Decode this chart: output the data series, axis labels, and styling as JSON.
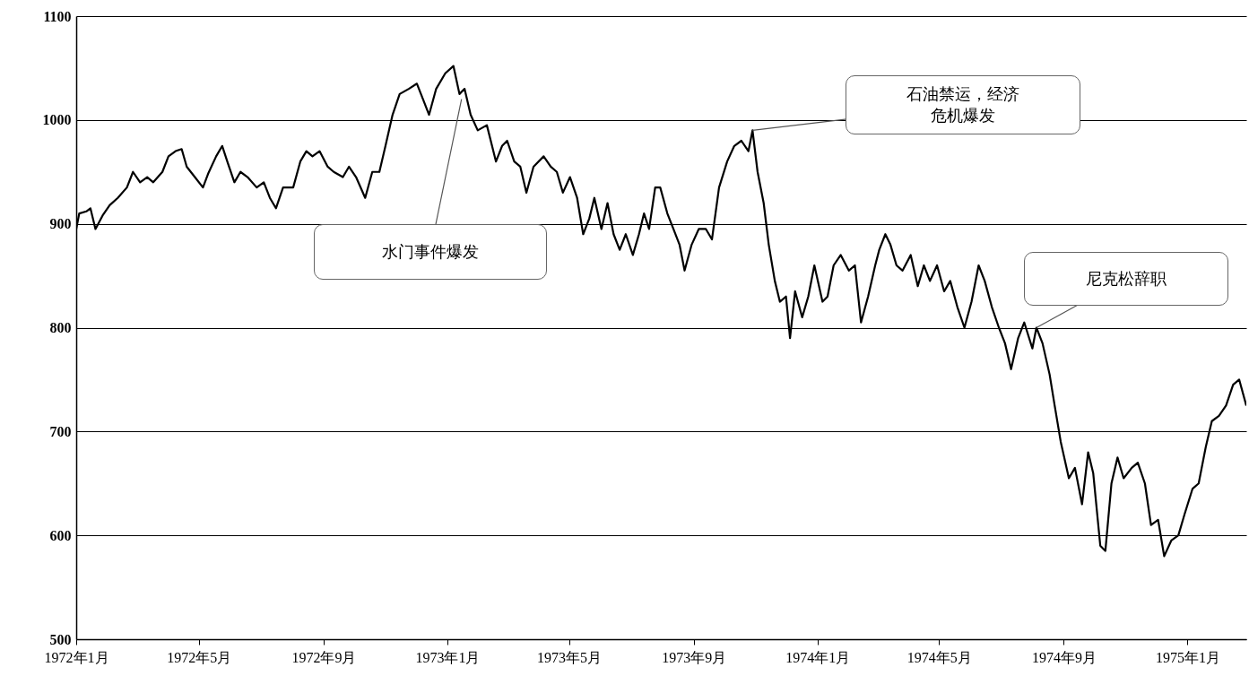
{
  "chart_data": {
    "type": "line",
    "grid": "y",
    "xlim": [
      "1972-01-01",
      "1975-02-28"
    ],
    "xticks": [
      {
        "value": "1972-01",
        "label": "1972年1月"
      },
      {
        "value": "1972-05",
        "label": "1972年5月"
      },
      {
        "value": "1972-09",
        "label": "1972年9月"
      },
      {
        "value": "1973-01",
        "label": "1973年1月"
      },
      {
        "value": "1973-05",
        "label": "1973年5月"
      },
      {
        "value": "1973-09",
        "label": "1973年9月"
      },
      {
        "value": "1974-01",
        "label": "1974年1月"
      },
      {
        "value": "1974-05",
        "label": "1974年5月"
      },
      {
        "value": "1974-09",
        "label": "1974年9月"
      },
      {
        "value": "1975-01",
        "label": "1975年1月"
      }
    ],
    "ylim": [
      500,
      1100
    ],
    "yticks": [
      500,
      600,
      700,
      800,
      900,
      1000,
      1100
    ],
    "x": [
      "1972-01-01",
      "1972-01-04",
      "1972-01-11",
      "1972-01-15",
      "1972-01-20",
      "1972-01-27",
      "1972-02-03",
      "1972-02-11",
      "1972-02-20",
      "1972-02-26",
      "1972-03-04",
      "1972-03-11",
      "1972-03-17",
      "1972-03-26",
      "1972-04-01",
      "1972-04-08",
      "1972-04-14",
      "1972-04-19",
      "1972-04-27",
      "1972-05-05",
      "1972-05-10",
      "1972-05-18",
      "1972-05-24",
      "1972-05-29",
      "1972-06-05",
      "1972-06-11",
      "1972-06-18",
      "1972-06-27",
      "1972-07-04",
      "1972-07-10",
      "1972-07-16",
      "1972-07-23",
      "1972-08-02",
      "1972-08-09",
      "1972-08-15",
      "1972-08-21",
      "1972-08-28",
      "1972-09-05",
      "1972-09-11",
      "1972-09-20",
      "1972-09-26",
      "1972-10-03",
      "1972-10-12",
      "1972-10-19",
      "1972-10-26",
      "1972-11-01",
      "1972-11-08",
      "1972-11-15",
      "1972-11-24",
      "1972-12-02",
      "1972-12-08",
      "1972-12-14",
      "1972-12-21",
      "1972-12-30",
      "1973-01-07",
      "1973-01-13",
      "1973-01-18",
      "1973-01-24",
      "1973-01-31",
      "1973-02-09",
      "1973-02-18",
      "1973-02-24",
      "1973-03-01",
      "1973-03-08",
      "1973-03-14",
      "1973-03-20",
      "1973-03-27",
      "1973-04-06",
      "1973-04-13",
      "1973-04-19",
      "1973-04-25",
      "1973-05-02",
      "1973-05-09",
      "1973-05-15",
      "1973-05-21",
      "1973-05-26",
      "1973-06-02",
      "1973-06-08",
      "1973-06-14",
      "1973-06-20",
      "1973-06-26",
      "1973-07-03",
      "1973-07-09",
      "1973-07-14",
      "1973-07-19",
      "1973-07-25",
      "1973-07-30",
      "1973-08-06",
      "1973-08-12",
      "1973-08-18",
      "1973-08-23",
      "1973-08-30",
      "1973-09-06",
      "1973-09-13",
      "1973-09-19",
      "1973-09-26",
      "1973-10-04",
      "1973-10-11",
      "1973-10-18",
      "1973-10-25",
      "1973-10-29",
      "1973-11-03",
      "1973-11-09",
      "1973-11-14",
      "1973-11-20",
      "1973-11-25",
      "1973-12-01",
      "1973-12-05",
      "1973-12-10",
      "1973-12-17",
      "1973-12-23",
      "1973-12-29",
      "1974-01-06",
      "1974-01-11",
      "1974-01-17",
      "1974-01-24",
      "1974-02-01",
      "1974-02-07",
      "1974-02-13",
      "1974-02-20",
      "1974-02-27",
      "1974-03-03",
      "1974-03-09",
      "1974-03-14",
      "1974-03-20",
      "1974-03-26",
      "1974-04-03",
      "1974-04-10",
      "1974-04-16",
      "1974-04-22",
      "1974-04-29",
      "1974-05-06",
      "1974-05-12",
      "1974-05-19",
      "1974-05-26",
      "1974-06-02",
      "1974-06-09",
      "1974-06-15",
      "1974-06-22",
      "1974-06-29",
      "1974-07-05",
      "1974-07-11",
      "1974-07-18",
      "1974-07-24",
      "1974-08-01",
      "1974-08-05",
      "1974-08-11",
      "1974-08-18",
      "1974-08-23",
      "1974-08-29",
      "1974-09-06",
      "1974-09-12",
      "1974-09-19",
      "1974-09-25",
      "1974-09-30",
      "1974-10-07",
      "1974-10-12",
      "1974-10-18",
      "1974-10-24",
      "1974-10-30",
      "1974-11-07",
      "1974-11-13",
      "1974-11-20",
      "1974-11-26",
      "1974-12-03",
      "1974-12-09",
      "1974-12-16",
      "1974-12-23",
      "1974-12-29",
      "1975-01-06",
      "1975-01-12",
      "1975-01-19",
      "1975-01-25",
      "1975-02-01",
      "1975-02-08",
      "1975-02-15",
      "1975-02-21",
      "1975-02-28"
    ],
    "series": [
      {
        "color": "#000000",
        "values": [
          895,
          910,
          912,
          915,
          895,
          908,
          918,
          925,
          935,
          950,
          940,
          945,
          940,
          950,
          965,
          970,
          972,
          955,
          945,
          935,
          948,
          965,
          975,
          960,
          940,
          950,
          945,
          935,
          940,
          925,
          915,
          935,
          935,
          960,
          970,
          965,
          970,
          955,
          950,
          945,
          955,
          945,
          925,
          950,
          950,
          975,
          1005,
          1025,
          1030,
          1035,
          1020,
          1005,
          1030,
          1045,
          1052,
          1025,
          1030,
          1005,
          990,
          995,
          960,
          975,
          980,
          960,
          955,
          930,
          955,
          965,
          955,
          950,
          930,
          945,
          925,
          890,
          905,
          925,
          895,
          920,
          890,
          875,
          890,
          870,
          890,
          910,
          895,
          935,
          935,
          910,
          895,
          880,
          855,
          880,
          895,
          895,
          885,
          935,
          960,
          975,
          980,
          970,
          990,
          950,
          920,
          880,
          845,
          825,
          830,
          790,
          835,
          810,
          830,
          860,
          825,
          830,
          860,
          870,
          855,
          860,
          805,
          830,
          860,
          875,
          890,
          880,
          860,
          855,
          870,
          840,
          860,
          845,
          860,
          835,
          845,
          820,
          800,
          825,
          860,
          845,
          820,
          800,
          785,
          760,
          790,
          805,
          780,
          800,
          785,
          755,
          725,
          690,
          655,
          665,
          630,
          680,
          660,
          590,
          585,
          650,
          675,
          655,
          665,
          670,
          650,
          610,
          615,
          580,
          595,
          600,
          620,
          645,
          650,
          685,
          710,
          715,
          725,
          745,
          750,
          725
        ]
      }
    ],
    "annotations": [
      {
        "text": "水门事件爆发",
        "x": "1973-01-15",
        "y": 1020
      },
      {
        "text": "石油禁运，经济危机爆发",
        "x": "1973-10-29",
        "y": 990
      },
      {
        "text": "尼克松辞职",
        "x": "1974-08-05",
        "y": 800
      }
    ]
  }
}
